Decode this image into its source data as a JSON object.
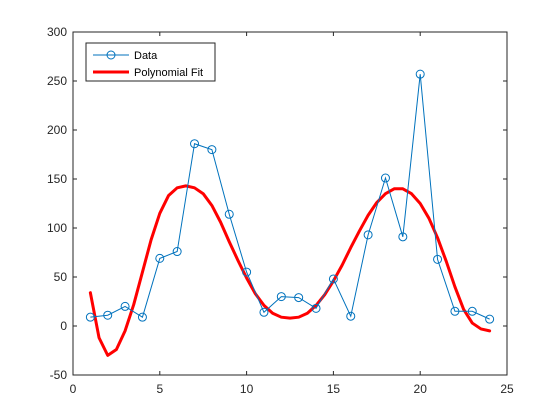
{
  "chart_data": {
    "type": "line",
    "title": "",
    "xlabel": "",
    "ylabel": "",
    "xlim": [
      0,
      25
    ],
    "ylim": [
      -50,
      300
    ],
    "xticks": [
      0,
      5,
      10,
      15,
      20,
      25
    ],
    "yticks": [
      -50,
      0,
      50,
      100,
      150,
      200,
      250,
      300
    ],
    "legend_position": "top-left",
    "series": [
      {
        "name": "Data",
        "style": "line-with-circle-markers",
        "color": "#0072BD",
        "x": [
          1,
          2,
          3,
          4,
          5,
          6,
          7,
          8,
          9,
          10,
          11,
          12,
          13,
          14,
          15,
          16,
          17,
          18,
          19,
          20,
          21,
          22,
          23,
          24
        ],
        "y": [
          9,
          11,
          20,
          9,
          69,
          76,
          186,
          180,
          114,
          55,
          14,
          30,
          29,
          18,
          48,
          10,
          93,
          151,
          91,
          257,
          68,
          15,
          15,
          7
        ]
      },
      {
        "name": "Polynomial Fit",
        "style": "thick-line",
        "color": "#FF0000",
        "x": [
          1,
          1.5,
          2,
          2.5,
          3,
          3.5,
          4,
          4.5,
          5,
          5.5,
          6,
          6.5,
          7,
          7.5,
          8,
          8.5,
          9,
          9.5,
          10,
          10.5,
          11,
          11.5,
          12,
          12.5,
          13,
          13.5,
          14,
          14.5,
          15,
          15.5,
          16,
          16.5,
          17,
          17.5,
          18,
          18.5,
          19,
          19.5,
          20,
          20.5,
          21,
          21.5,
          22,
          22.5,
          23,
          23.5,
          24
        ],
        "y": [
          34,
          -12,
          -30,
          -24,
          -5,
          22,
          55,
          88,
          115,
          133,
          141,
          143,
          141,
          135,
          123,
          106,
          86,
          67,
          49,
          33,
          21,
          13,
          9,
          8,
          9,
          13,
          21,
          32,
          46,
          62,
          80,
          97,
          113,
          126,
          135,
          140,
          140,
          135,
          125,
          110,
          90,
          66,
          40,
          17,
          3,
          -3,
          -5
        ]
      }
    ]
  }
}
